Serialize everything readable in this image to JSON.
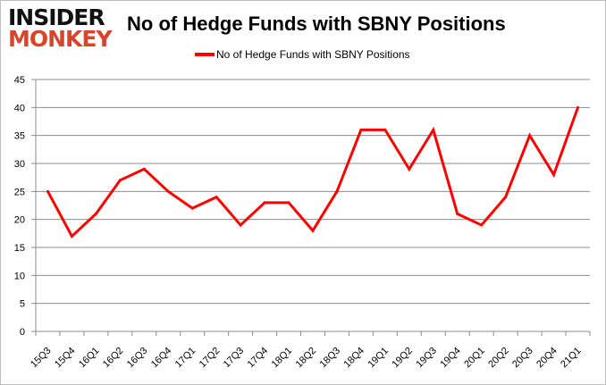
{
  "logo": {
    "line1": "INSIDER",
    "line2": "MONKEY"
  },
  "chart_data": {
    "type": "line",
    "title": "No of Hedge Funds with SBNY Positions",
    "xlabel": "",
    "ylabel": "",
    "categories": [
      "15Q3",
      "15Q4",
      "16Q1",
      "16Q2",
      "16Q3",
      "16Q4",
      "17Q1",
      "17Q2",
      "17Q3",
      "17Q4",
      "18Q1",
      "18Q2",
      "18Q3",
      "18Q4",
      "19Q1",
      "19Q2",
      "19Q3",
      "19Q4",
      "20Q1",
      "20Q2",
      "20Q3",
      "20Q4",
      "21Q1"
    ],
    "series": [
      {
        "name": "No of Hedge Funds with SBNY Positions",
        "color": "#ff0000",
        "values": [
          25,
          17,
          21,
          27,
          29,
          25,
          22,
          24,
          19,
          23,
          23,
          18,
          25,
          36,
          36,
          29,
          36,
          21,
          19,
          24,
          35,
          28,
          40
        ]
      }
    ],
    "ylim": [
      0,
      45
    ],
    "yticks": [
      0,
      5,
      10,
      15,
      20,
      25,
      30,
      35,
      40,
      45
    ],
    "grid": true,
    "legend": "top-center"
  }
}
